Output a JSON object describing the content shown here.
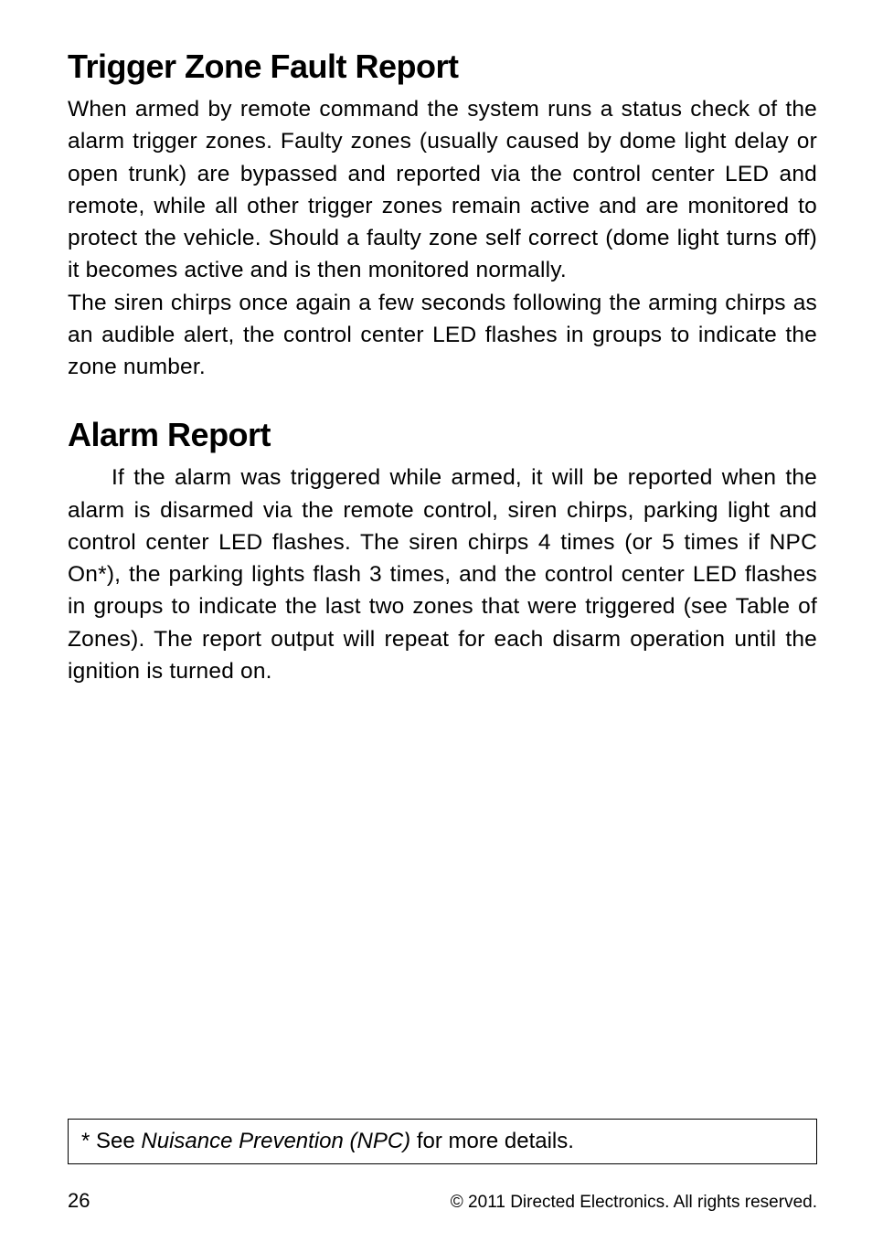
{
  "section1": {
    "heading": "Trigger Zone Fault Report",
    "para1": "When armed by remote command the system runs a status check of the alarm trigger zones. Faulty zones (usually caused by dome light delay or open trunk) are bypassed and reported via the control center LED and remote, while all other trigger zones remain active and are monitored to protect the vehicle. Should a faulty zone self correct (dome light turns off) it becomes active and is then monitored normally.",
    "para2": "The siren chirps once again a few seconds following the arming chirps as an audible alert, the control center LED flashes in groups to indicate the zone number."
  },
  "section2": {
    "heading": "Alarm Report",
    "para1": "If the alarm was triggered while armed, it will be reported when the alarm is disarmed via the remote control, siren chirps, parking light and control center LED flashes. The siren chirps 4 times (or 5 times if NPC On*), the parking lights flash 3 times, and the control center LED flashes in groups to indicate the last two zones that were triggered (see Table of Zones). The report output will repeat for each disarm operation until the ignition is turned on."
  },
  "footnote": {
    "prefix": "* See ",
    "italic": "Nuisance Prevention (NPC)",
    "suffix": " for more details."
  },
  "footer": {
    "page": "26",
    "copyright": "© 2011 Directed Electronics. All rights reserved."
  }
}
